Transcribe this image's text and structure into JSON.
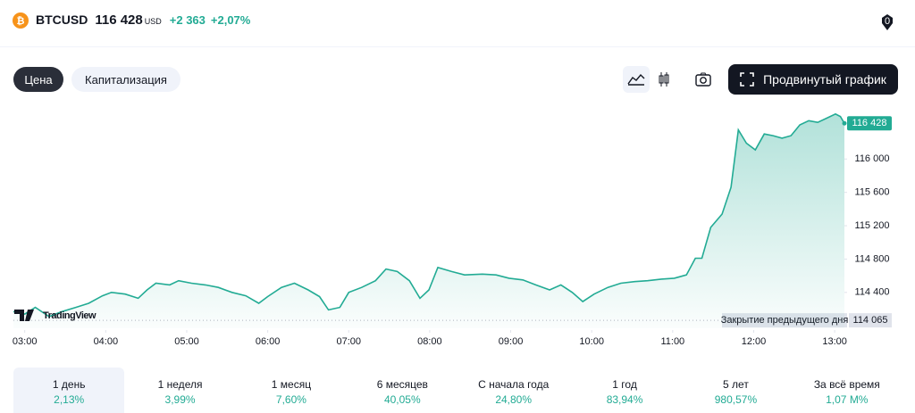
{
  "header": {
    "symbol": "BTCUSD",
    "price": "116 428",
    "currency": "USD",
    "change": "+2 363",
    "change_percent": "+2,07%"
  },
  "controls": {
    "tabs": [
      "Цена",
      "Капитализация"
    ],
    "advanced_button": "Продвинутый график"
  },
  "watermark": "TradingView",
  "periods": [
    {
      "label": "1 день",
      "change": "2,13%"
    },
    {
      "label": "1 неделя",
      "change": "3,99%"
    },
    {
      "label": "1 месяц",
      "change": "7,60%"
    },
    {
      "label": "6 месяцев",
      "change": "40,05%"
    },
    {
      "label": "С начала года",
      "change": "24,80%"
    },
    {
      "label": "1 год",
      "change": "83,94%"
    },
    {
      "label": "5 лет",
      "change": "980,57%"
    },
    {
      "label": "За всё время",
      "change": "1,07 M%"
    }
  ],
  "chart_data": {
    "type": "area",
    "x": [
      2.86,
      3.0,
      3.13,
      3.3,
      3.46,
      3.63,
      3.79,
      3.96,
      4.07,
      4.24,
      4.4,
      4.51,
      4.62,
      4.79,
      4.9,
      5.06,
      5.23,
      5.39,
      5.56,
      5.73,
      5.89,
      6.0,
      6.17,
      6.33,
      6.5,
      6.64,
      6.75,
      6.89,
      7.0,
      7.16,
      7.33,
      7.46,
      7.6,
      7.75,
      7.88,
      7.99,
      8.1,
      8.27,
      8.43,
      8.65,
      8.82,
      8.98,
      9.15,
      9.31,
      9.48,
      9.62,
      9.76,
      9.89,
      10.03,
      10.2,
      10.36,
      10.53,
      10.69,
      10.86,
      11.02,
      11.17,
      11.28,
      11.36,
      11.47,
      11.61,
      11.72,
      11.81,
      11.91,
      12.02,
      12.13,
      12.24,
      12.35,
      12.46,
      12.57,
      12.68,
      12.79,
      12.9,
      13.01,
      13.07,
      13.12
    ],
    "series": [
      {
        "name": "BTCUSD",
        "color": "#22ab94",
        "values": [
          114170,
          114140,
          114220,
          114110,
          114170,
          114220,
          114270,
          114360,
          114400,
          114380,
          114330,
          114430,
          114510,
          114490,
          114540,
          114510,
          114490,
          114460,
          114400,
          114360,
          114270,
          114350,
          114460,
          114510,
          114430,
          114350,
          114190,
          114220,
          114400,
          114460,
          114540,
          114680,
          114650,
          114540,
          114330,
          114430,
          114700,
          114650,
          114610,
          114620,
          114610,
          114570,
          114550,
          114490,
          114430,
          114490,
          114400,
          114290,
          114380,
          114460,
          114510,
          114530,
          114540,
          114560,
          114570,
          114610,
          114810,
          114810,
          115180,
          115340,
          115660,
          116350,
          116190,
          116110,
          116300,
          116280,
          116250,
          116280,
          116410,
          116460,
          116440,
          116490,
          116540,
          116510,
          116428
        ]
      }
    ],
    "xlim": [
      2.86,
      13.12
    ],
    "ylim": [
      113970,
      116570
    ],
    "xticks": [
      {
        "value": 3,
        "label": "03:00"
      },
      {
        "value": 4,
        "label": "04:00"
      },
      {
        "value": 5,
        "label": "05:00"
      },
      {
        "value": 6,
        "label": "06:00"
      },
      {
        "value": 7,
        "label": "07:00"
      },
      {
        "value": 8,
        "label": "08:00"
      },
      {
        "value": 9,
        "label": "09:00"
      },
      {
        "value": 10,
        "label": "10:00"
      },
      {
        "value": 11,
        "label": "11:00"
      },
      {
        "value": 12,
        "label": "12:00"
      },
      {
        "value": 13,
        "label": "13:00"
      }
    ],
    "yticks": [
      {
        "value": 114400,
        "label": "114 400"
      },
      {
        "value": 114800,
        "label": "114 800"
      },
      {
        "value": 115200,
        "label": "115 200"
      },
      {
        "value": 115600,
        "label": "115 600"
      },
      {
        "value": 116000,
        "label": "116 000"
      }
    ],
    "last_price": {
      "value": 116428,
      "label": "116 428"
    },
    "reference_line": {
      "name": "Закрытие предыдущего дня",
      "value": 114065,
      "label": "114 065"
    },
    "grid": false
  }
}
